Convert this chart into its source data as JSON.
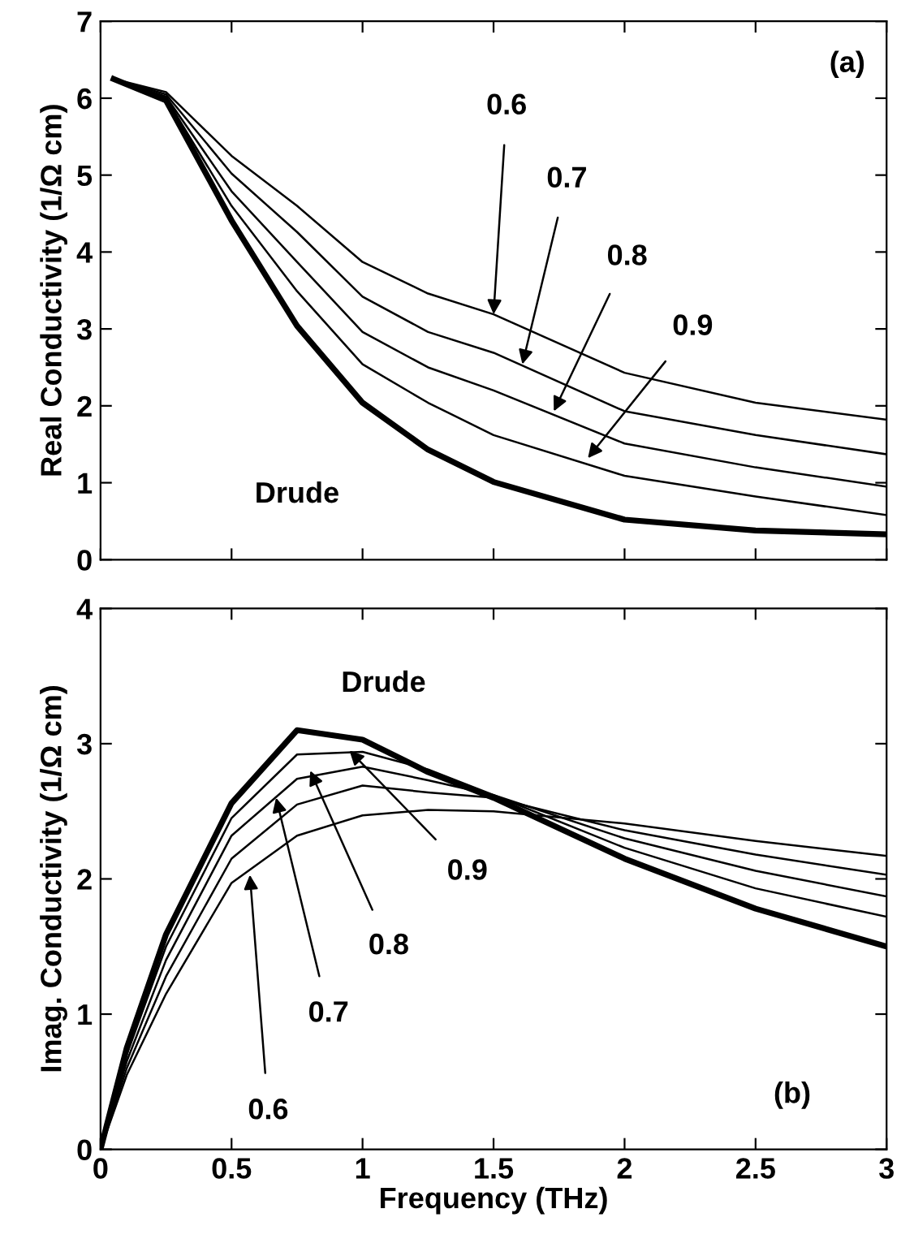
{
  "chart_data": [
    {
      "type": "line",
      "ylabel": "Real Conductivity (1/Ω cm)",
      "x": [
        0.05,
        0.25,
        0.5,
        0.75,
        1.0,
        1.25,
        1.5,
        2.0,
        2.5,
        3.0
      ],
      "xlim": [
        0,
        3
      ],
      "xticks": [
        0,
        0.5,
        1,
        1.5,
        2,
        2.5,
        3
      ],
      "ylim": [
        0,
        7
      ],
      "yticks": [
        0,
        1,
        2,
        3,
        4,
        5,
        6,
        7
      ],
      "tick_labels": "y",
      "grid": false,
      "legend": false,
      "series": [
        {
          "color": "#000000",
          "values": [
            6.25,
            5.97,
            4.41,
            3.04,
            2.04,
            1.43,
            1.01,
            0.52,
            0.38,
            0.33
          ]
        },
        {
          "color": "#000000",
          "values": [
            6.25,
            6.0,
            4.6,
            3.49,
            2.54,
            2.04,
            1.62,
            1.09,
            0.82,
            0.58
          ]
        },
        {
          "color": "#000000",
          "values": [
            6.25,
            6.02,
            4.79,
            3.87,
            2.96,
            2.5,
            2.2,
            1.51,
            1.2,
            0.95
          ]
        },
        {
          "color": "#000000",
          "values": [
            6.25,
            6.05,
            5.02,
            4.26,
            3.42,
            2.96,
            2.69,
            1.93,
            1.62,
            1.37
          ]
        },
        {
          "color": "#000000",
          "values": [
            6.25,
            6.08,
            5.25,
            4.6,
            3.87,
            3.46,
            3.19,
            2.43,
            2.04,
            1.82
          ]
        }
      ],
      "annotations": [
        "Drude",
        "(a)",
        {
          "text": "0.6",
          "x": 1.5,
          "y": 3.19
        },
        {
          "text": "0.7",
          "x": 1.61,
          "y": 2.54
        },
        {
          "text": "0.8",
          "x": 1.73,
          "y": 1.93
        },
        {
          "text": "0.9",
          "x": 1.86,
          "y": 1.32
        }
      ]
    },
    {
      "type": "line",
      "xlabel": "Frequency (THz)",
      "ylabel": "Imag. Conductivity (1/Ω cm)",
      "x": [
        0,
        0.1,
        0.25,
        0.5,
        0.75,
        1.0,
        1.25,
        1.5,
        2.0,
        2.5,
        3.0
      ],
      "xlim": [
        0,
        3
      ],
      "xticks": [
        0,
        0.5,
        1,
        1.5,
        2,
        2.5,
        3
      ],
      "ylim": [
        0,
        4
      ],
      "yticks": [
        0,
        1,
        2,
        3,
        4
      ],
      "grid": false,
      "legend": false,
      "series": [
        {
          "color": "#000000",
          "values": [
            0,
            0.75,
            1.59,
            2.56,
            3.1,
            3.03,
            2.79,
            2.6,
            2.15,
            1.78,
            1.5
          ]
        },
        {
          "color": "#000000",
          "values": [
            0,
            0.7,
            1.5,
            2.45,
            2.92,
            2.94,
            2.81,
            2.62,
            2.23,
            1.93,
            1.72
          ]
        },
        {
          "color": "#000000",
          "values": [
            0,
            0.65,
            1.4,
            2.32,
            2.74,
            2.83,
            2.73,
            2.62,
            2.3,
            2.06,
            1.87
          ]
        },
        {
          "color": "#000000",
          "values": [
            0,
            0.6,
            1.28,
            2.15,
            2.55,
            2.69,
            2.64,
            2.6,
            2.36,
            2.18,
            2.03
          ]
        },
        {
          "color": "#000000",
          "values": [
            0,
            0.55,
            1.15,
            1.97,
            2.32,
            2.47,
            2.51,
            2.5,
            2.41,
            2.28,
            2.17
          ]
        }
      ],
      "annotations": [
        "Drude",
        "(b)",
        {
          "text": "0.9",
          "x": 0.95,
          "y": 2.95
        },
        {
          "text": "0.8",
          "x": 0.8,
          "y": 2.8
        },
        {
          "text": "0.7",
          "x": 0.67,
          "y": 2.6
        },
        {
          "text": "0.6",
          "x": 0.57,
          "y": 2.03
        }
      ]
    }
  ]
}
